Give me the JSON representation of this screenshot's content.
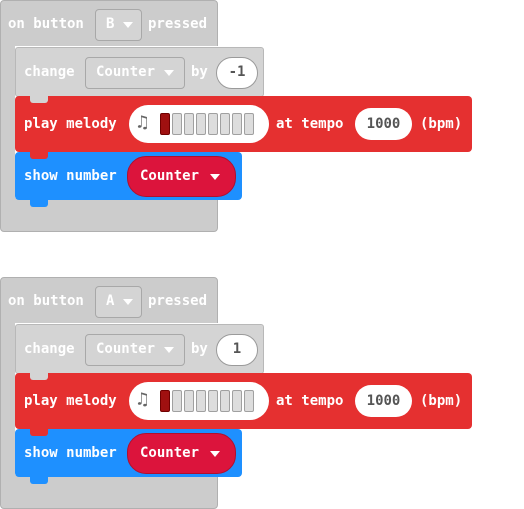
{
  "blocks": [
    {
      "event_prefix": "on button",
      "button": "B",
      "event_suffix": "pressed",
      "change_label": "change",
      "change_var": "Counter",
      "change_by_label": "by",
      "change_value": "-1",
      "melody_label": "play melody",
      "tempo_label": "at tempo",
      "tempo_value": "1000",
      "tempo_unit": "(bpm)",
      "show_label": "show number",
      "show_var": "Counter"
    },
    {
      "event_prefix": "on button",
      "button": "A",
      "event_suffix": "pressed",
      "change_label": "change",
      "change_var": "Counter",
      "change_by_label": "by",
      "change_value": "1",
      "melody_label": "play melody",
      "tempo_label": "at tempo",
      "tempo_value": "1000",
      "tempo_unit": "(bpm)",
      "show_label": "show number",
      "show_var": "Counter"
    }
  ],
  "icons": {
    "note": "music-note-icon",
    "dropdown": "chevron-down-icon"
  },
  "colors": {
    "event_gray": "#cccccc",
    "melody_red": "#e53030",
    "show_blue": "#1e90ff",
    "variable_crimson": "#dc143c"
  }
}
